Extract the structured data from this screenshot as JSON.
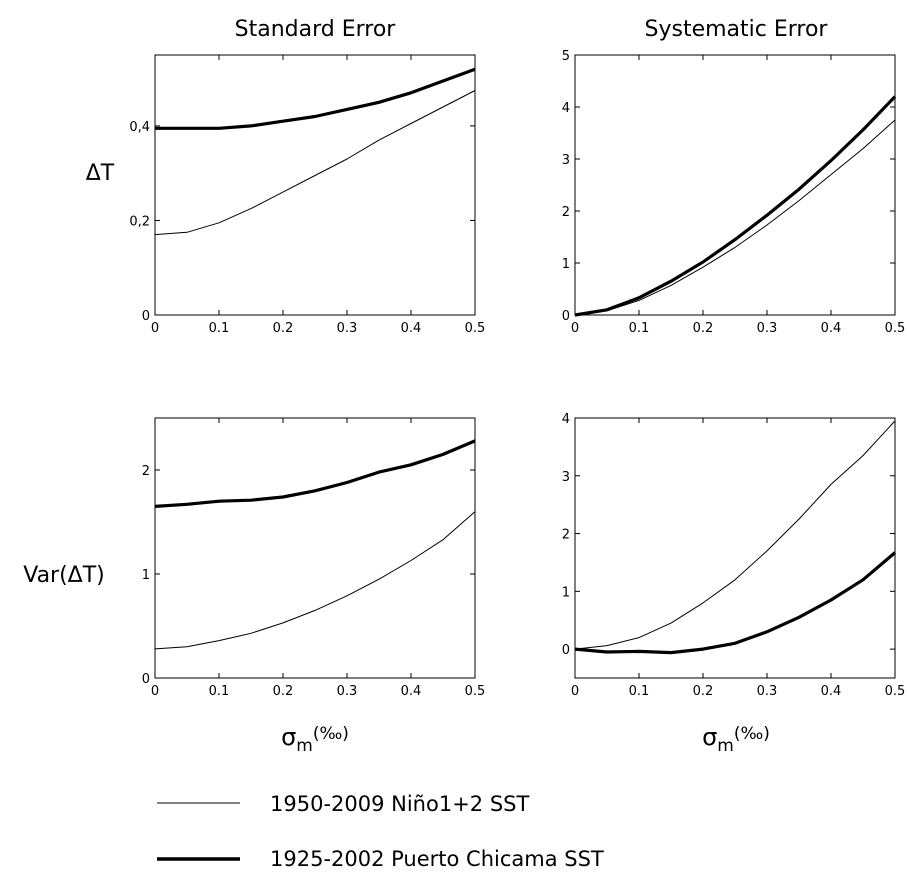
{
  "column_titles": [
    "Standard Error",
    "Systematic Error"
  ],
  "row_labels": [
    "ΔT",
    "Var(ΔT)"
  ],
  "xlabel": {
    "symbol": "σ",
    "sub": "m",
    "unit": "(‰)"
  },
  "legend": [
    {
      "label": "1950-2009 Niño1+2 SST",
      "weight": "thin"
    },
    {
      "label": "1925-2002 Puerto Chicama SST",
      "weight": "thick"
    }
  ],
  "chart_data": [
    {
      "type": "line",
      "panel": "top-left",
      "title": "Standard Error",
      "ylabel": "ΔT",
      "xlabel": "σm(‰)",
      "xlim": [
        0,
        0.5
      ],
      "ylim": [
        0,
        0.55
      ],
      "xticks": [
        0,
        0.1,
        0.2,
        0.3,
        0.4,
        0.5
      ],
      "xtick_labels": [
        "0",
        "0.1",
        "0.2",
        "0.3",
        "0.4",
        "0.5"
      ],
      "yticks": [
        0,
        0.2,
        0.4
      ],
      "ytick_labels": [
        "0",
        "0,2",
        "0,4"
      ],
      "x": [
        0,
        0.05,
        0.1,
        0.15,
        0.2,
        0.25,
        0.3,
        0.35,
        0.4,
        0.45,
        0.5
      ],
      "series": [
        {
          "name": "1950-2009 Niño1+2 SST",
          "weight": "thin",
          "values": [
            0.17,
            0.175,
            0.195,
            0.225,
            0.26,
            0.295,
            0.33,
            0.37,
            0.405,
            0.44,
            0.475
          ]
        },
        {
          "name": "1925-2002 Puerto Chicama SST",
          "weight": "thick",
          "values": [
            0.395,
            0.395,
            0.395,
            0.4,
            0.41,
            0.42,
            0.435,
            0.45,
            0.47,
            0.495,
            0.52
          ]
        }
      ]
    },
    {
      "type": "line",
      "panel": "top-right",
      "title": "Systematic Error",
      "ylabel": "",
      "xlabel": "σm(‰)",
      "xlim": [
        0,
        0.5
      ],
      "ylim": [
        0,
        5
      ],
      "xticks": [
        0,
        0.1,
        0.2,
        0.3,
        0.4,
        0.5
      ],
      "xtick_labels": [
        "0",
        "0.1",
        "0.2",
        "0.3",
        "0.4",
        "0.5"
      ],
      "yticks": [
        0,
        1,
        2,
        3,
        4,
        5
      ],
      "ytick_labels": [
        "0",
        "1",
        "2",
        "3",
        "4",
        "5"
      ],
      "x": [
        0,
        0.05,
        0.1,
        0.15,
        0.2,
        0.25,
        0.3,
        0.35,
        0.4,
        0.45,
        0.5
      ],
      "series": [
        {
          "name": "1950-2009 Niño1+2 SST",
          "weight": "thin",
          "values": [
            0,
            0.08,
            0.28,
            0.57,
            0.92,
            1.3,
            1.73,
            2.2,
            2.7,
            3.2,
            3.75
          ]
        },
        {
          "name": "1925-2002 Puerto Chicama SST",
          "weight": "thick",
          "values": [
            0,
            0.1,
            0.33,
            0.65,
            1.02,
            1.45,
            1.92,
            2.42,
            2.97,
            3.56,
            4.2
          ]
        }
      ]
    },
    {
      "type": "line",
      "panel": "bottom-left",
      "title": "",
      "ylabel": "Var(ΔT)",
      "xlabel": "σm(‰)",
      "xlim": [
        0,
        0.5
      ],
      "ylim": [
        0,
        2.5
      ],
      "xticks": [
        0,
        0.1,
        0.2,
        0.3,
        0.4,
        0.5
      ],
      "xtick_labels": [
        "0",
        "0.1",
        "0.2",
        "0.3",
        "0.4",
        "0.5"
      ],
      "yticks": [
        0,
        1,
        2
      ],
      "ytick_labels": [
        "0",
        "1",
        "2"
      ],
      "x": [
        0,
        0.05,
        0.1,
        0.15,
        0.2,
        0.25,
        0.3,
        0.35,
        0.4,
        0.45,
        0.5
      ],
      "series": [
        {
          "name": "1950-2009 Niño1+2 SST",
          "weight": "thin",
          "values": [
            0.28,
            0.3,
            0.36,
            0.43,
            0.53,
            0.65,
            0.79,
            0.95,
            1.13,
            1.33,
            1.6
          ]
        },
        {
          "name": "1925-2002 Puerto Chicama SST",
          "weight": "thick",
          "values": [
            1.65,
            1.67,
            1.7,
            1.71,
            1.74,
            1.8,
            1.88,
            1.98,
            2.05,
            2.15,
            2.28
          ]
        }
      ]
    },
    {
      "type": "line",
      "panel": "bottom-right",
      "title": "",
      "ylabel": "",
      "xlabel": "σm(‰)",
      "xlim": [
        0,
        0.5
      ],
      "ylim": [
        -0.5,
        4
      ],
      "xticks": [
        0,
        0.1,
        0.2,
        0.3,
        0.4,
        0.5
      ],
      "xtick_labels": [
        "0",
        "0.1",
        "0.2",
        "0.3",
        "0.4",
        "0.5"
      ],
      "yticks": [
        0,
        1,
        2,
        3,
        4
      ],
      "ytick_labels": [
        "0",
        "1",
        "2",
        "3",
        "4"
      ],
      "x": [
        0,
        0.05,
        0.1,
        0.15,
        0.2,
        0.25,
        0.3,
        0.35,
        0.4,
        0.45,
        0.5
      ],
      "series": [
        {
          "name": "1950-2009 Niño1+2 SST",
          "weight": "thin",
          "values": [
            0,
            0.06,
            0.2,
            0.45,
            0.8,
            1.2,
            1.7,
            2.25,
            2.85,
            3.35,
            3.95
          ]
        },
        {
          "name": "1925-2002 Puerto Chicama SST",
          "weight": "thick",
          "values": [
            0,
            -0.05,
            -0.04,
            -0.06,
            0,
            0.1,
            0.3,
            0.55,
            0.85,
            1.2,
            1.67
          ]
        }
      ]
    }
  ]
}
